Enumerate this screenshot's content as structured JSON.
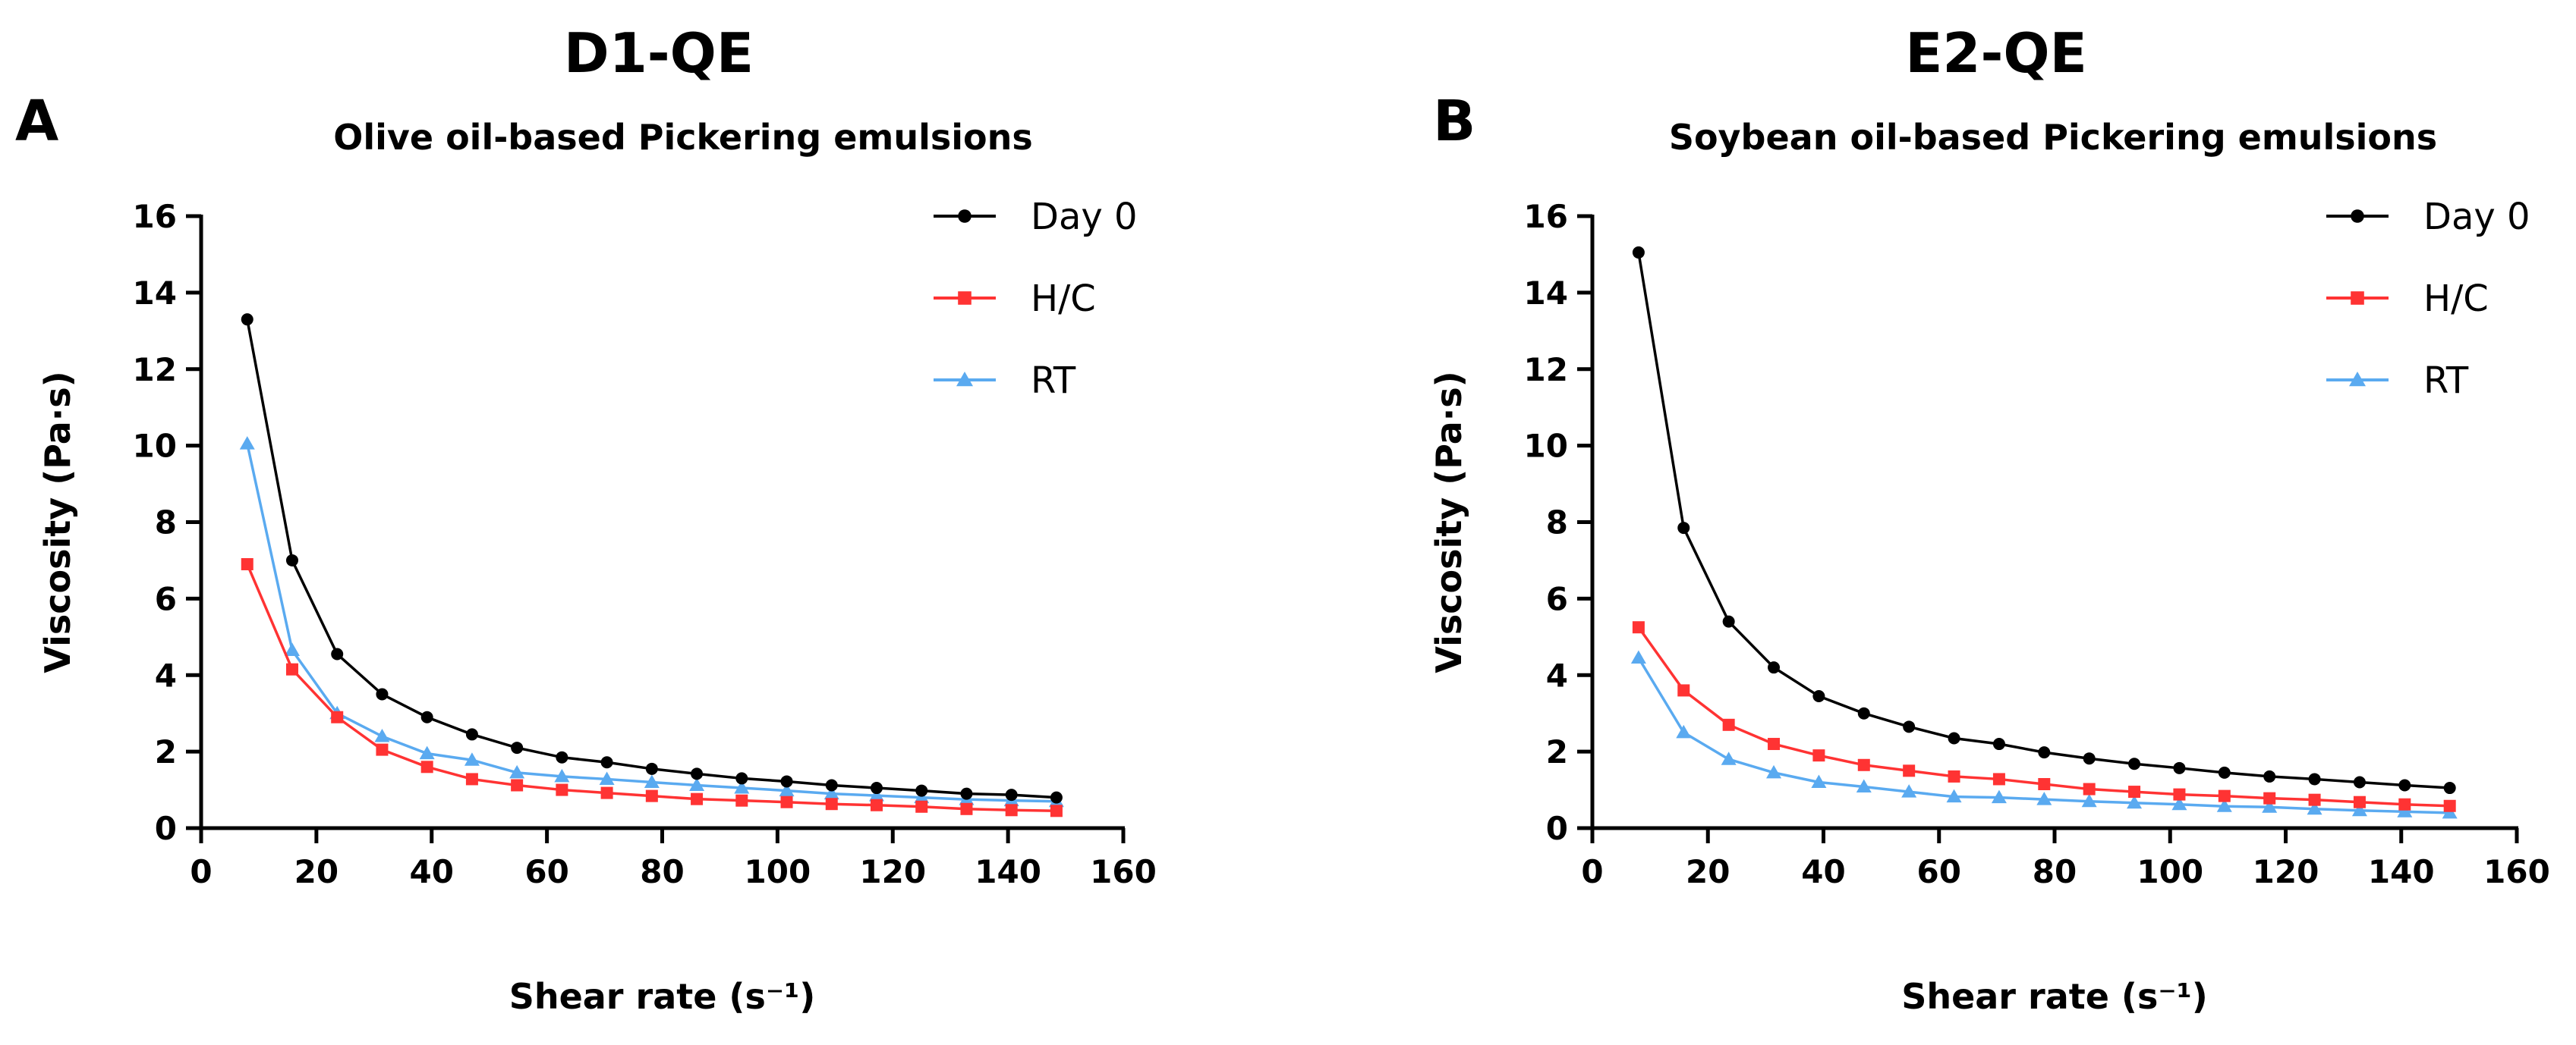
{
  "chart_data": [
    {
      "type": "line",
      "panel_label": "A",
      "title": "D1-QE",
      "subtitle": "Olive oil-based Pickering emulsions",
      "xlabel": "Shear rate (s⁻¹)",
      "ylabel": "Viscosity (Pa·s)",
      "xlim": [
        0,
        160
      ],
      "ylim": [
        0,
        16
      ],
      "xticks": [
        0,
        20,
        40,
        60,
        80,
        100,
        120,
        140,
        160
      ],
      "yticks": [
        0,
        2,
        4,
        6,
        8,
        10,
        12,
        14,
        16
      ],
      "grid": false,
      "legend_position": "top-right",
      "x": [
        8,
        15.8,
        23.6,
        31.4,
        39.2,
        47,
        54.8,
        62.6,
        70.4,
        78.2,
        86,
        93.8,
        101.6,
        109.4,
        117.2,
        125,
        132.8,
        140.6,
        148.4
      ],
      "series": [
        {
          "name": "Day 0",
          "color": "#000000",
          "marker": "circle",
          "values": [
            13.3,
            7.0,
            4.55,
            3.5,
            2.9,
            2.45,
            2.1,
            1.85,
            1.72,
            1.55,
            1.42,
            1.3,
            1.22,
            1.12,
            1.05,
            0.98,
            0.9,
            0.87,
            0.8
          ]
        },
        {
          "name": "H/C",
          "color": "#ff3333",
          "marker": "square",
          "values": [
            6.9,
            4.15,
            2.9,
            2.05,
            1.6,
            1.28,
            1.12,
            1.0,
            0.92,
            0.84,
            0.76,
            0.72,
            0.68,
            0.63,
            0.6,
            0.56,
            0.5,
            0.47,
            0.45
          ]
        },
        {
          "name": "RT",
          "color": "#5aaaf0",
          "marker": "triangle",
          "values": [
            10.05,
            4.65,
            3.0,
            2.4,
            1.95,
            1.78,
            1.45,
            1.35,
            1.28,
            1.2,
            1.12,
            1.05,
            0.98,
            0.9,
            0.85,
            0.8,
            0.75,
            0.72,
            0.7
          ]
        }
      ]
    },
    {
      "type": "line",
      "panel_label": "B",
      "title": "E2-QE",
      "subtitle": "Soybean oil-based Pickering emulsions",
      "xlabel": "Shear rate (s⁻¹)",
      "ylabel": "Viscosity (Pa·s)",
      "xlim": [
        0,
        160
      ],
      "ylim": [
        0,
        16
      ],
      "xticks": [
        0,
        20,
        40,
        60,
        80,
        100,
        120,
        140,
        160
      ],
      "yticks": [
        0,
        2,
        4,
        6,
        8,
        10,
        12,
        14,
        16
      ],
      "grid": false,
      "legend_position": "top-right",
      "x": [
        8,
        15.8,
        23.6,
        31.4,
        39.2,
        47,
        54.8,
        62.6,
        70.4,
        78.2,
        86,
        93.8,
        101.6,
        109.4,
        117.2,
        125,
        132.8,
        140.6,
        148.4
      ],
      "series": [
        {
          "name": "Day 0",
          "color": "#000000",
          "marker": "circle",
          "values": [
            15.05,
            7.85,
            5.4,
            4.2,
            3.45,
            3.0,
            2.65,
            2.35,
            2.2,
            1.98,
            1.82,
            1.68,
            1.57,
            1.45,
            1.35,
            1.28,
            1.2,
            1.12,
            1.05
          ]
        },
        {
          "name": "H/C",
          "color": "#ff3333",
          "marker": "square",
          "values": [
            5.25,
            3.6,
            2.7,
            2.2,
            1.9,
            1.65,
            1.5,
            1.35,
            1.28,
            1.15,
            1.02,
            0.95,
            0.88,
            0.84,
            0.78,
            0.74,
            0.68,
            0.62,
            0.58
          ]
        },
        {
          "name": "RT",
          "color": "#5aaaf0",
          "marker": "triangle",
          "values": [
            4.45,
            2.5,
            1.8,
            1.45,
            1.2,
            1.08,
            0.95,
            0.82,
            0.8,
            0.75,
            0.7,
            0.66,
            0.62,
            0.57,
            0.55,
            0.5,
            0.46,
            0.43,
            0.4
          ]
        }
      ]
    }
  ]
}
